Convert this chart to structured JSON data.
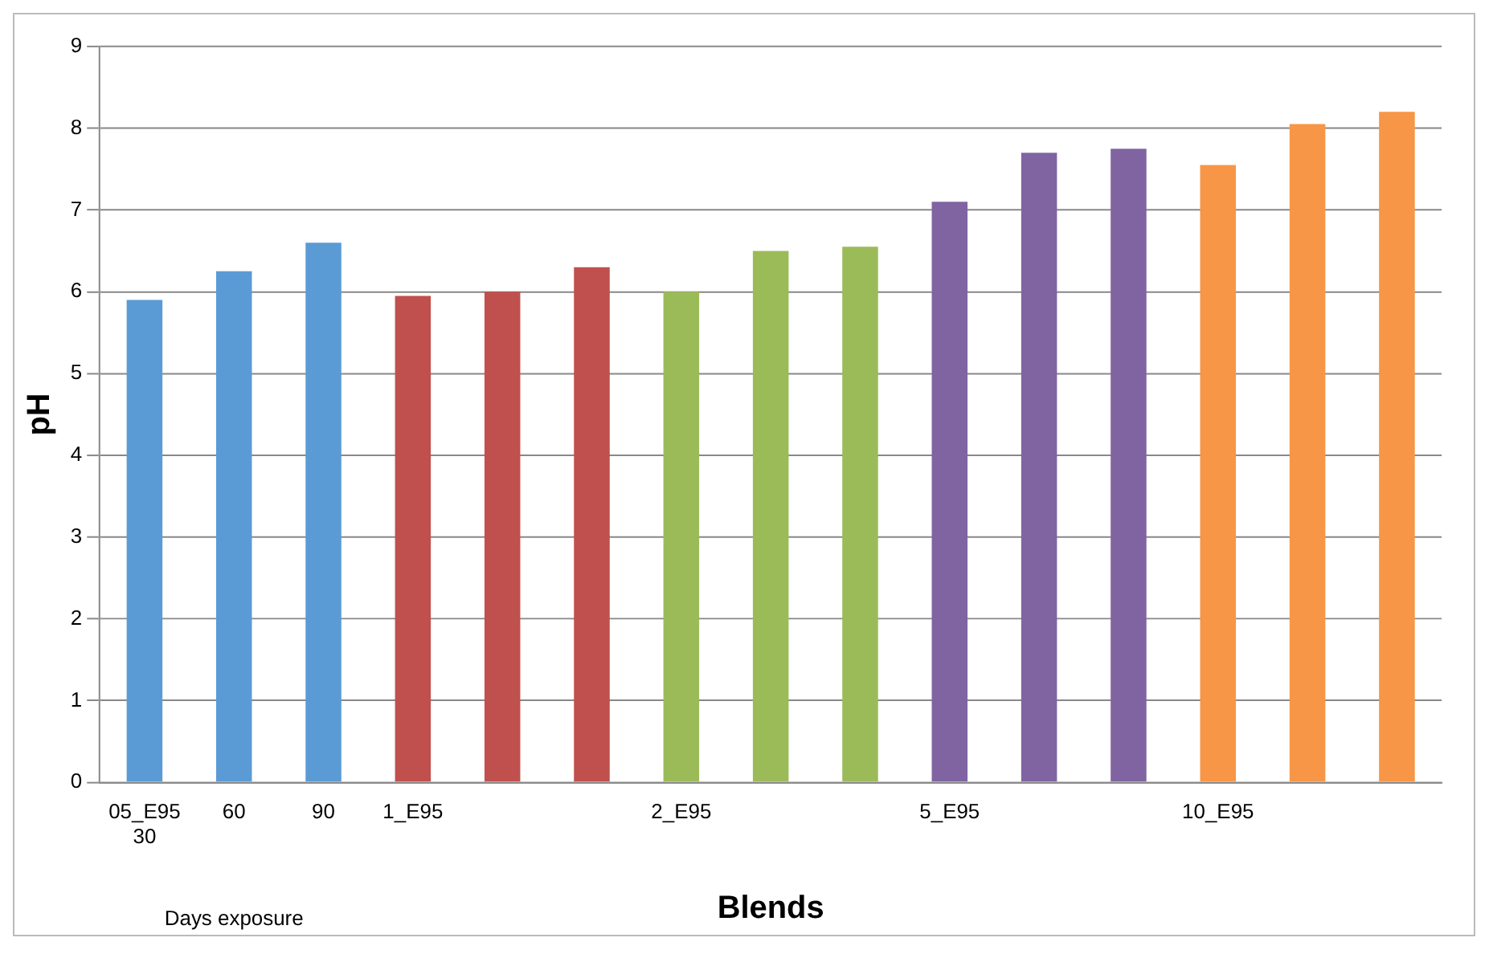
{
  "chart_data": {
    "type": "bar",
    "xlabel": "Blends",
    "ylabel": "pH",
    "categories": [
      "05_E95\n30",
      "60",
      "90",
      "1_E95",
      null,
      null,
      "2_E95",
      null,
      null,
      "5_E95",
      null,
      null,
      "10_E95",
      null,
      null
    ],
    "values": [
      5.9,
      6.25,
      6.6,
      5.95,
      6.0,
      6.3,
      6.0,
      6.5,
      6.55,
      7.1,
      7.7,
      7.75,
      7.55,
      8.05,
      8.2
    ],
    "colors": [
      "#5b9bd5",
      "#5b9bd5",
      "#5b9bd5",
      "#c0504d",
      "#c0504d",
      "#c0504d",
      "#9bbb59",
      "#9bbb59",
      "#9bbb59",
      "#8064a2",
      "#8064a2",
      "#8064a2",
      "#f79646",
      "#f79646",
      "#f79646"
    ],
    "ylim": [
      0,
      9
    ],
    "yticks": [
      0,
      1,
      2,
      3,
      4,
      5,
      6,
      7,
      8,
      9
    ],
    "grid": "y",
    "legend": false,
    "annotations": [
      "Days exposure"
    ]
  }
}
